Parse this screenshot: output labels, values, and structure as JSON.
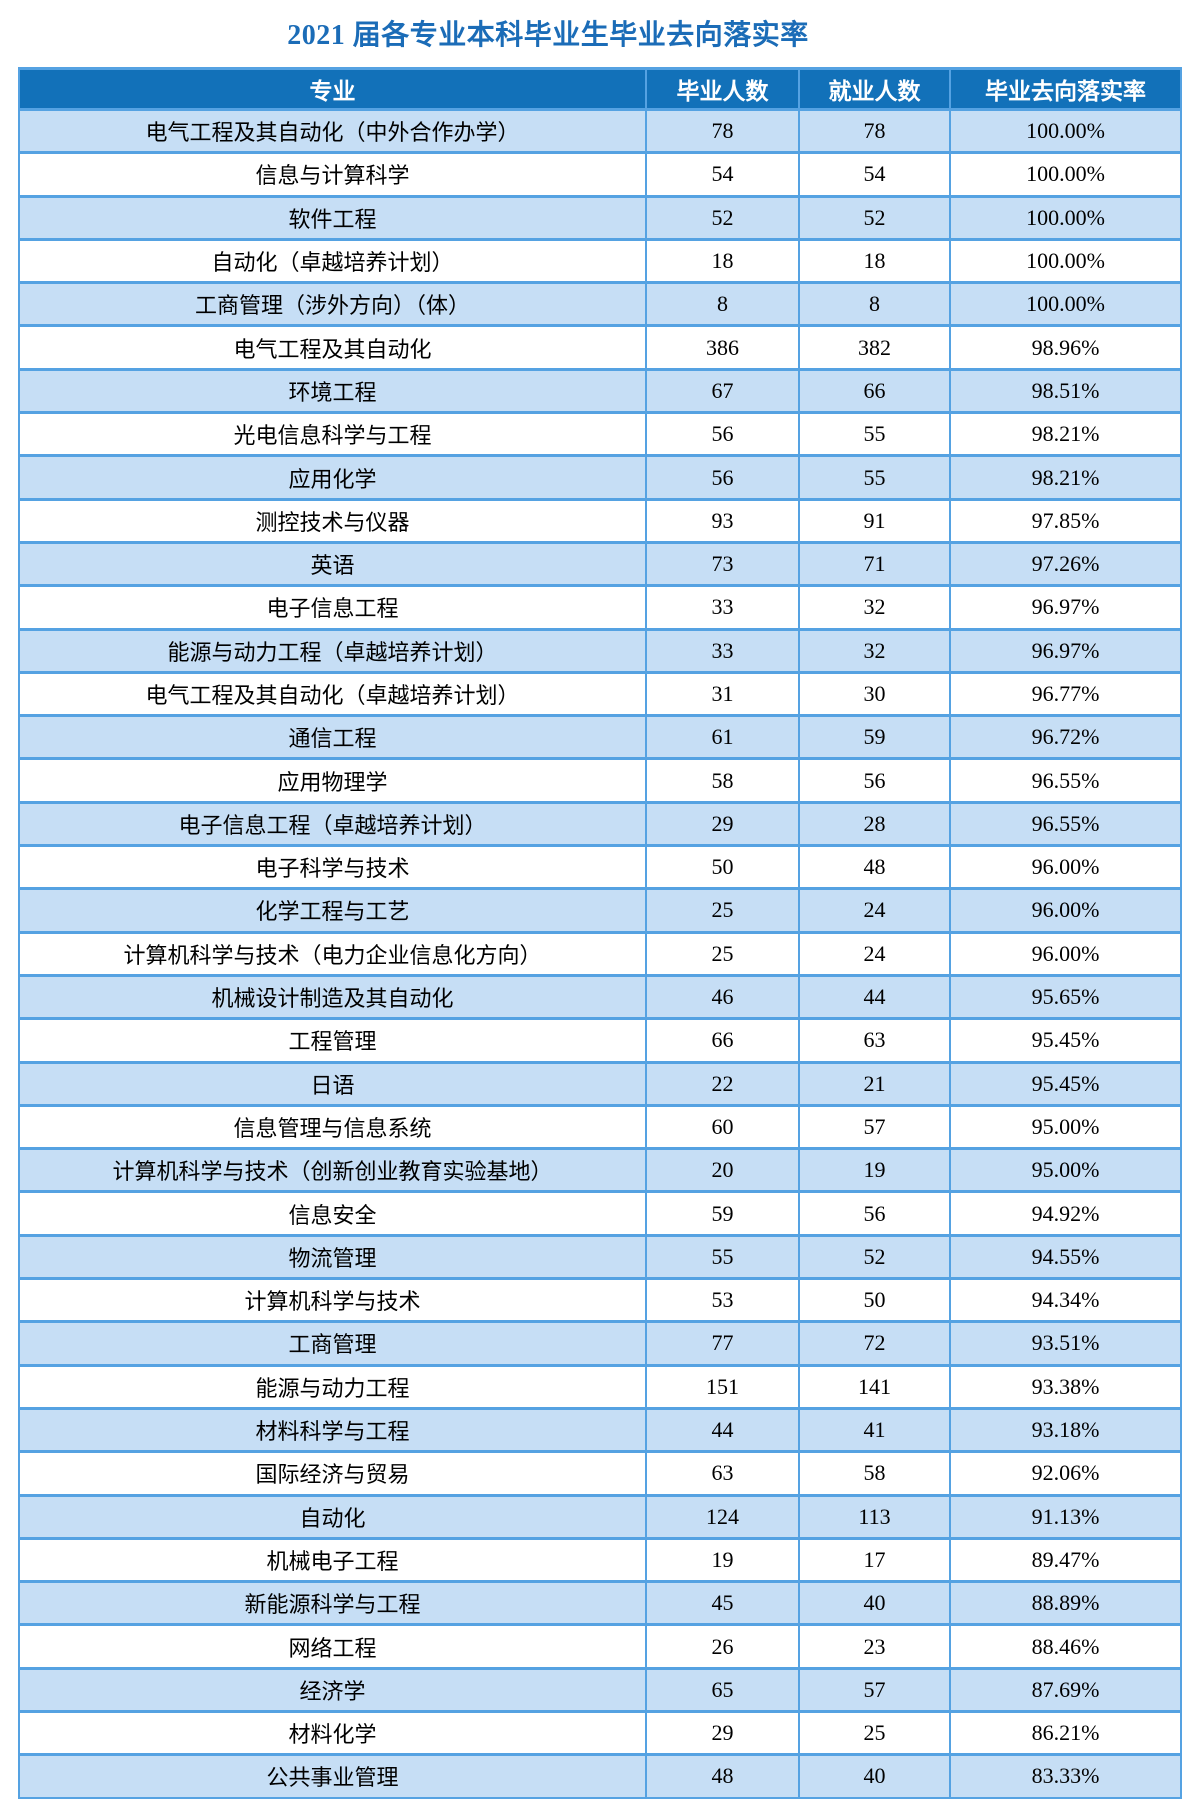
{
  "title": "2021 届各专业本科毕业生毕业去向落实率",
  "colors": {
    "title_text": "#1b6cb7",
    "header_bg": "#1271b9",
    "header_text": "#ffffff",
    "alt_row_bg": "#c6def5",
    "border": "#55a2e2",
    "body_text": "#000000"
  },
  "table": {
    "headers": [
      "专业",
      "毕业人数",
      "就业人数",
      "毕业去向落实率"
    ],
    "rows": [
      {
        "major": "电气工程及其自动化（中外合作办学）",
        "graduates": 78,
        "employed": 78,
        "rate": "100.00%"
      },
      {
        "major": "信息与计算科学",
        "graduates": 54,
        "employed": 54,
        "rate": "100.00%"
      },
      {
        "major": "软件工程",
        "graduates": 52,
        "employed": 52,
        "rate": "100.00%"
      },
      {
        "major": "自动化（卓越培养计划）",
        "graduates": 18,
        "employed": 18,
        "rate": "100.00%"
      },
      {
        "major": "工商管理（涉外方向）（体）",
        "graduates": 8,
        "employed": 8,
        "rate": "100.00%"
      },
      {
        "major": "电气工程及其自动化",
        "graduates": 386,
        "employed": 382,
        "rate": "98.96%"
      },
      {
        "major": "环境工程",
        "graduates": 67,
        "employed": 66,
        "rate": "98.51%"
      },
      {
        "major": "光电信息科学与工程",
        "graduates": 56,
        "employed": 55,
        "rate": "98.21%"
      },
      {
        "major": "应用化学",
        "graduates": 56,
        "employed": 55,
        "rate": "98.21%"
      },
      {
        "major": "测控技术与仪器",
        "graduates": 93,
        "employed": 91,
        "rate": "97.85%"
      },
      {
        "major": "英语",
        "graduates": 73,
        "employed": 71,
        "rate": "97.26%"
      },
      {
        "major": "电子信息工程",
        "graduates": 33,
        "employed": 32,
        "rate": "96.97%"
      },
      {
        "major": "能源与动力工程（卓越培养计划）",
        "graduates": 33,
        "employed": 32,
        "rate": "96.97%"
      },
      {
        "major": "电气工程及其自动化（卓越培养计划）",
        "graduates": 31,
        "employed": 30,
        "rate": "96.77%"
      },
      {
        "major": "通信工程",
        "graduates": 61,
        "employed": 59,
        "rate": "96.72%"
      },
      {
        "major": "应用物理学",
        "graduates": 58,
        "employed": 56,
        "rate": "96.55%"
      },
      {
        "major": "电子信息工程（卓越培养计划）",
        "graduates": 29,
        "employed": 28,
        "rate": "96.55%"
      },
      {
        "major": "电子科学与技术",
        "graduates": 50,
        "employed": 48,
        "rate": "96.00%"
      },
      {
        "major": "化学工程与工艺",
        "graduates": 25,
        "employed": 24,
        "rate": "96.00%"
      },
      {
        "major": "计算机科学与技术（电力企业信息化方向）",
        "graduates": 25,
        "employed": 24,
        "rate": "96.00%"
      },
      {
        "major": "机械设计制造及其自动化",
        "graduates": 46,
        "employed": 44,
        "rate": "95.65%"
      },
      {
        "major": "工程管理",
        "graduates": 66,
        "employed": 63,
        "rate": "95.45%"
      },
      {
        "major": "日语",
        "graduates": 22,
        "employed": 21,
        "rate": "95.45%"
      },
      {
        "major": "信息管理与信息系统",
        "graduates": 60,
        "employed": 57,
        "rate": "95.00%"
      },
      {
        "major": "计算机科学与技术（创新创业教育实验基地）",
        "graduates": 20,
        "employed": 19,
        "rate": "95.00%"
      },
      {
        "major": "信息安全",
        "graduates": 59,
        "employed": 56,
        "rate": "94.92%"
      },
      {
        "major": "物流管理",
        "graduates": 55,
        "employed": 52,
        "rate": "94.55%"
      },
      {
        "major": "计算机科学与技术",
        "graduates": 53,
        "employed": 50,
        "rate": "94.34%"
      },
      {
        "major": "工商管理",
        "graduates": 77,
        "employed": 72,
        "rate": "93.51%"
      },
      {
        "major": "能源与动力工程",
        "graduates": 151,
        "employed": 141,
        "rate": "93.38%"
      },
      {
        "major": "材料科学与工程",
        "graduates": 44,
        "employed": 41,
        "rate": "93.18%"
      },
      {
        "major": "国际经济与贸易",
        "graduates": 63,
        "employed": 58,
        "rate": "92.06%"
      },
      {
        "major": "自动化",
        "graduates": 124,
        "employed": 113,
        "rate": "91.13%"
      },
      {
        "major": "机械电子工程",
        "graduates": 19,
        "employed": 17,
        "rate": "89.47%"
      },
      {
        "major": "新能源科学与工程",
        "graduates": 45,
        "employed": 40,
        "rate": "88.89%"
      },
      {
        "major": "网络工程",
        "graduates": 26,
        "employed": 23,
        "rate": "88.46%"
      },
      {
        "major": "经济学",
        "graduates": 65,
        "employed": 57,
        "rate": "87.69%"
      },
      {
        "major": "材料化学",
        "graduates": 29,
        "employed": 25,
        "rate": "86.21%"
      },
      {
        "major": "公共事业管理",
        "graduates": 48,
        "employed": 40,
        "rate": "83.33%"
      }
    ]
  }
}
